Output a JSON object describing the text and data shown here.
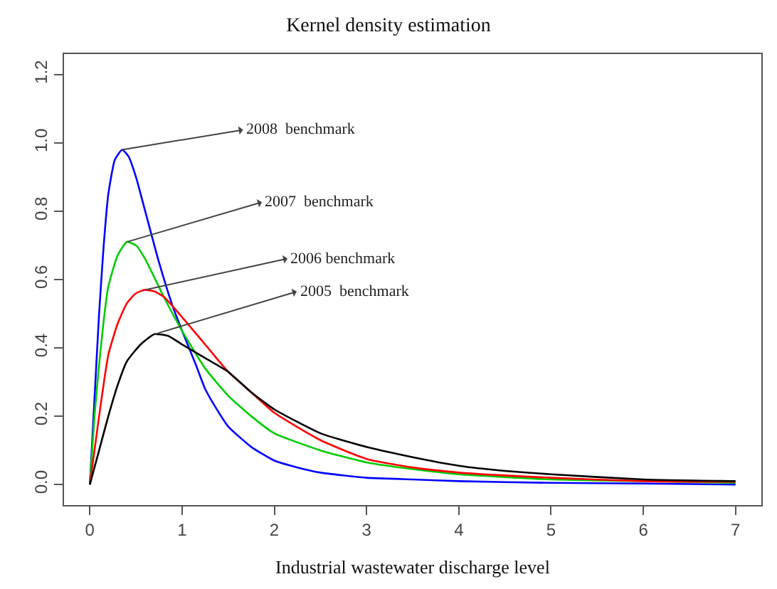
{
  "chart_data": {
    "type": "line",
    "title": "Kernel density estimation",
    "xlabel": "Industrial wastewater discharge level",
    "xlim": [
      -0.28,
      7.28
    ],
    "xticks": [
      0,
      1,
      2,
      3,
      4,
      5,
      6,
      7
    ],
    "ylim": [
      -0.06,
      1.26
    ],
    "yticks": [
      {
        "value": 0,
        "label": "0.0"
      },
      {
        "value": 0.2,
        "label": "0.2"
      },
      {
        "value": 0.4,
        "label": "0.4"
      },
      {
        "value": 0.6,
        "label": "0.6"
      },
      {
        "value": 0.8,
        "label": "0.8"
      },
      {
        "value": 1,
        "label": "1.0"
      },
      {
        "value": 1.2,
        "label": "1.2"
      }
    ],
    "marker": "none",
    "line_style": "solid",
    "series": [
      {
        "color": "#0000ff",
        "x": [
          0,
          0.05,
          0.1,
          0.15,
          0.2,
          0.27,
          0.35,
          0.42,
          0.5,
          0.6,
          0.75,
          0.9,
          1.0,
          1.15,
          1.25,
          1.4,
          1.5,
          1.75,
          2,
          2.25,
          2.5,
          3,
          3.5,
          4,
          5,
          6,
          7
        ],
        "values": [
          0,
          0.25,
          0.5,
          0.7,
          0.85,
          0.95,
          0.98,
          0.96,
          0.9,
          0.8,
          0.65,
          0.52,
          0.45,
          0.35,
          0.28,
          0.21,
          0.17,
          0.11,
          0.07,
          0.05,
          0.035,
          0.02,
          0.015,
          0.01,
          0.005,
          0.003,
          0.0
        ]
      },
      {
        "color": "#00cc00",
        "x": [
          0,
          0.05,
          0.1,
          0.15,
          0.2,
          0.3,
          0.4,
          0.5,
          0.6,
          0.8,
          1.0,
          1.25,
          1.5,
          1.75,
          2,
          2.5,
          3,
          3.5,
          4,
          5,
          6,
          7
        ],
        "values": [
          0,
          0.2,
          0.35,
          0.48,
          0.58,
          0.67,
          0.71,
          0.7,
          0.66,
          0.55,
          0.45,
          0.34,
          0.26,
          0.2,
          0.15,
          0.1,
          0.065,
          0.045,
          0.03,
          0.015,
          0.01,
          0.005
        ]
      },
      {
        "color": "#ff0000",
        "x": [
          0,
          0.05,
          0.1,
          0.2,
          0.3,
          0.4,
          0.5,
          0.6,
          0.7,
          0.8,
          1.0,
          1.25,
          1.5,
          1.75,
          2,
          2.5,
          3,
          3.5,
          4,
          5,
          6,
          7
        ],
        "values": [
          0,
          0.1,
          0.2,
          0.38,
          0.47,
          0.53,
          0.56,
          0.57,
          0.565,
          0.55,
          0.49,
          0.41,
          0.33,
          0.27,
          0.21,
          0.13,
          0.075,
          0.05,
          0.035,
          0.02,
          0.01,
          0.008
        ]
      },
      {
        "color": "#000000",
        "x": [
          0,
          0.1,
          0.2,
          0.3,
          0.4,
          0.55,
          0.7,
          0.85,
          1.0,
          1.25,
          1.5,
          1.75,
          2,
          2.5,
          3,
          3.5,
          4,
          4.5,
          5,
          6,
          7
        ],
        "values": [
          0,
          0.1,
          0.2,
          0.29,
          0.36,
          0.41,
          0.44,
          0.435,
          0.41,
          0.37,
          0.33,
          0.27,
          0.22,
          0.15,
          0.11,
          0.08,
          0.055,
          0.04,
          0.03,
          0.015,
          0.01
        ]
      }
    ],
    "annotations": [
      {
        "text": "2008  benchmark",
        "x": 0.35,
        "y": 0.98
      },
      {
        "text": "2007  benchmark",
        "x": 0.4,
        "y": 0.71
      },
      {
        "text": "2006 benchmark",
        "x": 0.6,
        "y": 0.57
      },
      {
        "text": "2005  benchmark",
        "x": 0.7,
        "y": 0.44
      }
    ]
  }
}
